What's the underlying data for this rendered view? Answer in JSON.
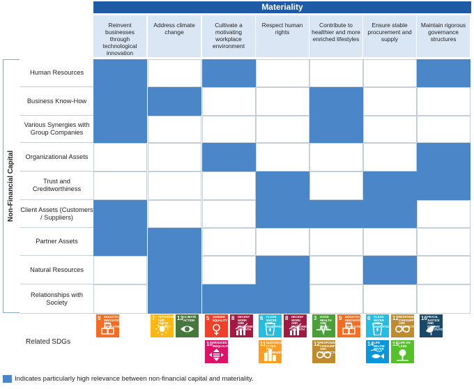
{
  "header": {
    "title": "Materiality"
  },
  "columns": [
    "Reinvent businesses through technological innovation",
    "Address climate change",
    "Cultivate a motivating workplace environment",
    "Respect human rights",
    "Contribute to healthier and more enriched lifestyles",
    "Ensure stable procurement and supply",
    "Maintain rigorous governance structures"
  ],
  "side_label": "Non-Financial Capital",
  "rows": [
    {
      "label": "Human Resources",
      "cells": [
        1,
        0,
        1,
        0,
        0,
        0,
        1
      ]
    },
    {
      "label": "Business Know-How",
      "cells": [
        1,
        1,
        0,
        0,
        1,
        0,
        0
      ]
    },
    {
      "label": "Various Synergies with Group Companies",
      "cells": [
        1,
        0,
        0,
        0,
        1,
        0,
        0
      ]
    },
    {
      "label": "Organizational Assets",
      "cells": [
        0,
        0,
        1,
        0,
        0,
        0,
        1
      ]
    },
    {
      "label": "Trust and Creditworthiness",
      "cells": [
        0,
        0,
        0,
        1,
        0,
        1,
        1
      ]
    },
    {
      "label": "Client Assets (Customers / Suppliers)",
      "cells": [
        1,
        0,
        0,
        1,
        1,
        1,
        0
      ]
    },
    {
      "label": "Partner Assets",
      "cells": [
        1,
        1,
        0,
        0,
        0,
        0,
        0
      ]
    },
    {
      "label": "Natural Resources",
      "cells": [
        0,
        1,
        0,
        1,
        0,
        1,
        0
      ]
    },
    {
      "label": "Relationships with Society",
      "cells": [
        0,
        1,
        1,
        1,
        0,
        0,
        0
      ]
    }
  ],
  "sdg_row_label": "Related SDGs",
  "sdgs": [
    [
      {
        "num": "9",
        "title": "Industry, innovation and infrastructure",
        "color": "#f36d25",
        "icon": "cubes-icon"
      }
    ],
    [
      {
        "num": "7",
        "title": "Affordable and clean energy",
        "color": "#fdb713",
        "icon": "sun-icon"
      },
      {
        "num": "13",
        "title": "Climate action",
        "color": "#48773e",
        "icon": "eye-globe-icon"
      }
    ],
    [
      {
        "num": "5",
        "title": "Gender equality",
        "color": "#ef402b",
        "icon": "gender-icon"
      },
      {
        "num": "8",
        "title": "Decent work and economic growth",
        "color": "#a21942",
        "icon": "growth-chart-icon"
      },
      {
        "num": "10",
        "title": "Reduced inequalities",
        "color": "#dd1367",
        "icon": "equality-arrows-icon"
      }
    ],
    [
      {
        "num": "6",
        "title": "Clean water and sanitation",
        "color": "#26bde2",
        "icon": "water-glass-icon"
      },
      {
        "num": "8",
        "title": "Decent work and economic growth",
        "color": "#a21942",
        "icon": "growth-chart-icon"
      },
      {
        "num": "11",
        "title": "Sustainable cities and communities",
        "color": "#fd9d24",
        "icon": "city-icon"
      }
    ],
    [
      {
        "num": "3",
        "title": "Good health and well-being",
        "color": "#4c9f38",
        "icon": "heartbeat-icon"
      },
      {
        "num": "9",
        "title": "Industry, innovation and infrastructure",
        "color": "#f36d25",
        "icon": "cubes-icon"
      },
      {
        "num": "12",
        "title": "Responsible consumption and production",
        "color": "#bf8b2e",
        "icon": "infinity-icon"
      }
    ],
    [
      {
        "num": "6",
        "title": "Clean water and sanitation",
        "color": "#26bde2",
        "icon": "water-glass-icon"
      },
      {
        "num": "12",
        "title": "Responsible consumption and production",
        "color": "#bf8b2e",
        "icon": "infinity-icon"
      },
      {
        "num": "14",
        "title": "Life below water",
        "color": "#0a97d9",
        "icon": "fish-icon"
      },
      {
        "num": "15",
        "title": "Life on land",
        "color": "#56c02b",
        "icon": "tree-icon"
      }
    ],
    [
      {
        "num": "16",
        "title": "Peace, justice and strong institutions",
        "color": "#19486a",
        "icon": "dove-icon"
      }
    ]
  ],
  "legend": {
    "text": "Indicates particularly high relevance between non-financial capital and materiality.",
    "color": "#4a86c8"
  }
}
